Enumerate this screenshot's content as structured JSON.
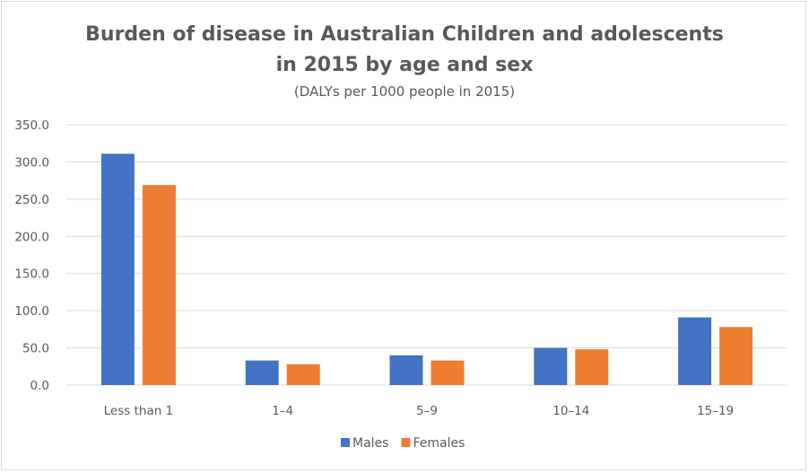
{
  "chart_data": {
    "type": "bar",
    "title_lines": [
      "Burden of disease in Australian Children and adolescents",
      "in 2015 by age and sex"
    ],
    "subtitle": "(DALYs per 1000 people in 2015)",
    "categories": [
      "Less than 1",
      "1–4",
      "5–9",
      "10–14",
      "15–19"
    ],
    "series": [
      {
        "name": "Males",
        "color": "#4472c4",
        "values": [
          311,
          33,
          40,
          50,
          91
        ]
      },
      {
        "name": "Females",
        "color": "#ed7d31",
        "values": [
          269,
          28,
          33,
          48,
          78
        ]
      }
    ],
    "yticks": [
      "0.0",
      "50.0",
      "100.0",
      "150.0",
      "200.0",
      "250.0",
      "300.0",
      "350.0"
    ],
    "ylim": [
      0,
      350
    ],
    "xlabel": "",
    "ylabel": "",
    "grid": true,
    "legend_position": "bottom"
  }
}
